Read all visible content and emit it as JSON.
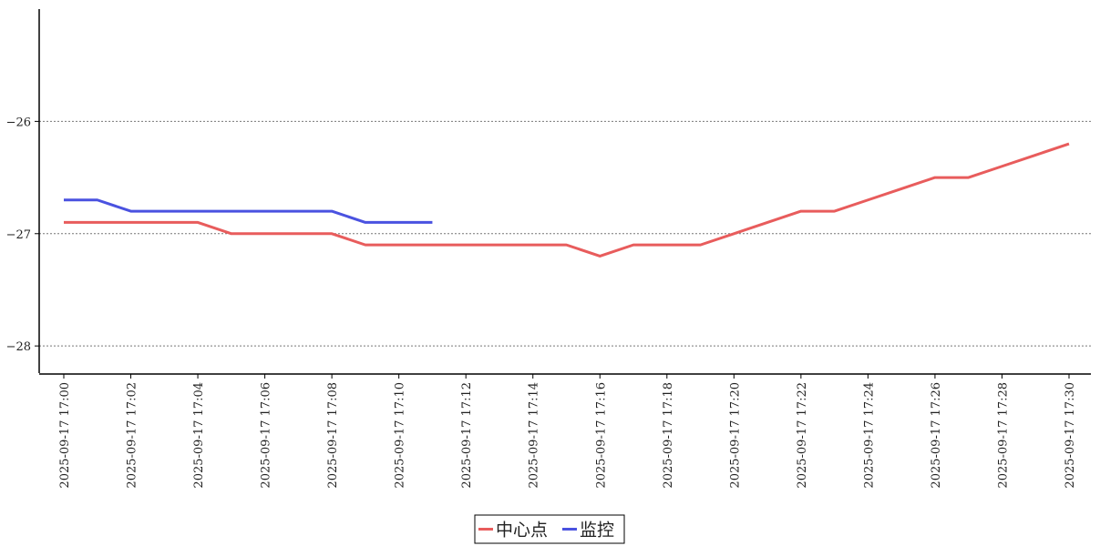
{
  "chart_data": {
    "type": "line",
    "title": "",
    "xlabel": "",
    "ylabel": "",
    "x": [
      "2025-09-17 17:00",
      "2025-09-17 17:01",
      "2025-09-17 17:02",
      "2025-09-17 17:03",
      "2025-09-17 17:04",
      "2025-09-17 17:05",
      "2025-09-17 17:06",
      "2025-09-17 17:07",
      "2025-09-17 17:08",
      "2025-09-17 17:09",
      "2025-09-17 17:10",
      "2025-09-17 17:11",
      "2025-09-17 17:12",
      "2025-09-17 17:13",
      "2025-09-17 17:14",
      "2025-09-17 17:15",
      "2025-09-17 17:16",
      "2025-09-17 17:17",
      "2025-09-17 17:18",
      "2025-09-17 17:19",
      "2025-09-17 17:20",
      "2025-09-17 17:21",
      "2025-09-17 17:22",
      "2025-09-17 17:23",
      "2025-09-17 17:24",
      "2025-09-17 17:25",
      "2025-09-17 17:26",
      "2025-09-17 17:27",
      "2025-09-17 17:28",
      "2025-09-17 17:29",
      "2025-09-17 17:30"
    ],
    "x_ticks": [
      "2025-09-17 17:00",
      "2025-09-17 17:02",
      "2025-09-17 17:04",
      "2025-09-17 17:06",
      "2025-09-17 17:08",
      "2025-09-17 17:10",
      "2025-09-17 17:12",
      "2025-09-17 17:14",
      "2025-09-17 17:16",
      "2025-09-17 17:18",
      "2025-09-17 17:20",
      "2025-09-17 17:22",
      "2025-09-17 17:24",
      "2025-09-17 17:26",
      "2025-09-17 17:28",
      "2025-09-17 17:30"
    ],
    "y_ticks": [
      -26,
      -27,
      -28
    ],
    "y_tick_labels": [
      "−26",
      "−27",
      "−28"
    ],
    "ylim": [
      -28.25,
      -25.0
    ],
    "grid": "horizontal-dotted",
    "legend_position": "bottom-center",
    "series": [
      {
        "name": "中心点",
        "color": "#e85c5c",
        "values": [
          -26.9,
          -26.9,
          -26.9,
          -26.9,
          -26.9,
          -27.0,
          -27.0,
          -27.0,
          -27.0,
          -27.1,
          -27.1,
          -27.1,
          -27.1,
          -27.1,
          -27.1,
          -27.1,
          -27.2,
          -27.1,
          -27.1,
          -27.1,
          -27.0,
          -26.9,
          -26.8,
          -26.8,
          -26.7,
          -26.6,
          -26.5,
          -26.5,
          -26.4,
          -26.3,
          -26.2
        ]
      },
      {
        "name": "监控",
        "color": "#4a52e0",
        "values": [
          -26.7,
          -26.7,
          -26.8,
          -26.8,
          -26.8,
          -26.8,
          -26.8,
          -26.8,
          -26.8,
          -26.9,
          -26.9,
          -26.9,
          null,
          null,
          null,
          null,
          null,
          null,
          null,
          null,
          null,
          null,
          null,
          null,
          null,
          null,
          null,
          null,
          null,
          null,
          null
        ]
      }
    ]
  }
}
